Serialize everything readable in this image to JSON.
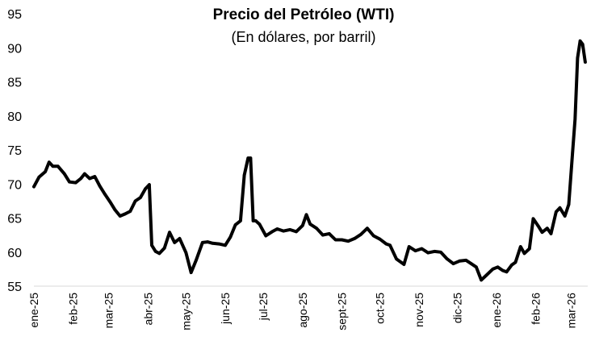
{
  "chart_data": {
    "type": "line",
    "title": "Precio del Petróleo (WTI)",
    "subtitle": "(En dólares, por barril)",
    "xlabel": "",
    "ylabel": "",
    "ylim": [
      55,
      95
    ],
    "yticks": [
      55,
      60,
      65,
      70,
      75,
      80,
      85,
      90,
      95
    ],
    "grid": false,
    "legend": "none",
    "line_color": "#000000",
    "x_tick_labels": [
      "ene-25",
      "feb-25",
      "mar-25",
      "abr-25",
      "may-25",
      "jun-25",
      "jul-25",
      "ago-25",
      "sept-25",
      "oct-25",
      "nov-25",
      "dic-25",
      "ene-26",
      "feb-26",
      "mar-26"
    ],
    "series": [
      {
        "x": [
          "2025-01-01",
          "2025-01-05",
          "2025-01-10",
          "2025-01-13",
          "2025-01-16",
          "2025-01-20",
          "2025-01-25",
          "2025-01-29",
          "2025-02-03",
          "2025-02-07",
          "2025-02-10",
          "2025-02-14",
          "2025-02-18",
          "2025-02-22",
          "2025-02-26",
          "2025-03-02",
          "2025-03-06",
          "2025-03-10",
          "2025-03-14",
          "2025-03-18",
          "2025-03-22",
          "2025-03-26",
          "2025-03-30",
          "2025-04-02",
          "2025-04-04",
          "2025-04-07",
          "2025-04-10",
          "2025-04-14",
          "2025-04-18",
          "2025-04-22",
          "2025-04-26",
          "2025-05-01",
          "2025-05-05",
          "2025-05-09",
          "2025-05-14",
          "2025-05-18",
          "2025-05-22",
          "2025-05-27",
          "2025-06-01",
          "2025-06-05",
          "2025-06-09",
          "2025-06-13",
          "2025-06-16",
          "2025-06-19",
          "2025-06-21",
          "2025-06-23",
          "2025-06-25",
          "2025-06-28",
          "2025-07-03",
          "2025-07-08",
          "2025-07-12",
          "2025-07-17",
          "2025-07-22",
          "2025-07-27",
          "2025-08-01",
          "2025-08-04",
          "2025-08-07",
          "2025-08-12",
          "2025-08-17",
          "2025-08-22",
          "2025-08-27",
          "2025-09-01",
          "2025-09-06",
          "2025-09-11",
          "2025-09-16",
          "2025-09-21",
          "2025-09-26",
          "2025-10-01",
          "2025-10-06",
          "2025-10-09",
          "2025-10-14",
          "2025-10-20",
          "2025-10-24",
          "2025-10-29",
          "2025-11-03",
          "2025-11-08",
          "2025-11-13",
          "2025-11-18",
          "2025-11-23",
          "2025-11-28",
          "2025-12-03",
          "2025-12-08",
          "2025-12-12",
          "2025-12-16",
          "2025-12-20",
          "2025-12-24",
          "2025-12-29",
          "2026-01-02",
          "2026-01-06",
          "2026-01-09",
          "2026-01-13",
          "2026-01-16",
          "2026-01-20",
          "2026-01-23",
          "2026-01-27",
          "2026-01-30",
          "2026-02-03",
          "2026-02-06",
          "2026-02-10",
          "2026-02-13",
          "2026-02-17",
          "2026-02-20",
          "2026-02-24",
          "2026-02-27",
          "2026-03-02",
          "2026-03-04",
          "2026-03-06",
          "2026-03-08",
          "2026-03-10",
          "2026-03-12"
        ],
        "values": [
          69.6,
          71.0,
          71.8,
          73.2,
          72.6,
          72.6,
          71.5,
          70.3,
          70.2,
          70.8,
          71.5,
          70.8,
          71.1,
          69.7,
          68.5,
          67.4,
          66.2,
          65.3,
          65.6,
          66.0,
          67.5,
          68.0,
          69.3,
          69.9,
          61.0,
          60.1,
          59.8,
          60.6,
          62.9,
          61.4,
          62.0,
          59.9,
          57.0,
          58.8,
          61.4,
          61.5,
          61.3,
          61.2,
          61.0,
          62.2,
          64.0,
          64.6,
          71.3,
          73.8,
          73.8,
          64.6,
          64.6,
          64.1,
          62.4,
          63.0,
          63.4,
          63.1,
          63.3,
          63.0,
          63.9,
          65.5,
          64.1,
          63.5,
          62.5,
          62.7,
          61.8,
          61.8,
          61.6,
          62.0,
          62.6,
          63.5,
          62.4,
          61.9,
          61.2,
          61.0,
          59.0,
          58.2,
          60.8,
          60.2,
          60.5,
          59.9,
          60.1,
          60.0,
          59.0,
          58.3,
          58.7,
          58.8,
          58.3,
          57.8,
          55.9,
          56.6,
          57.5,
          57.8,
          57.3,
          57.1,
          58.1,
          58.5,
          60.8,
          59.8,
          60.5,
          64.9,
          63.8,
          62.9,
          63.5,
          62.7,
          65.9,
          66.5,
          65.3,
          67.0,
          74.6,
          79.5,
          88.5,
          91.0,
          90.5,
          87.9
        ]
      }
    ]
  }
}
